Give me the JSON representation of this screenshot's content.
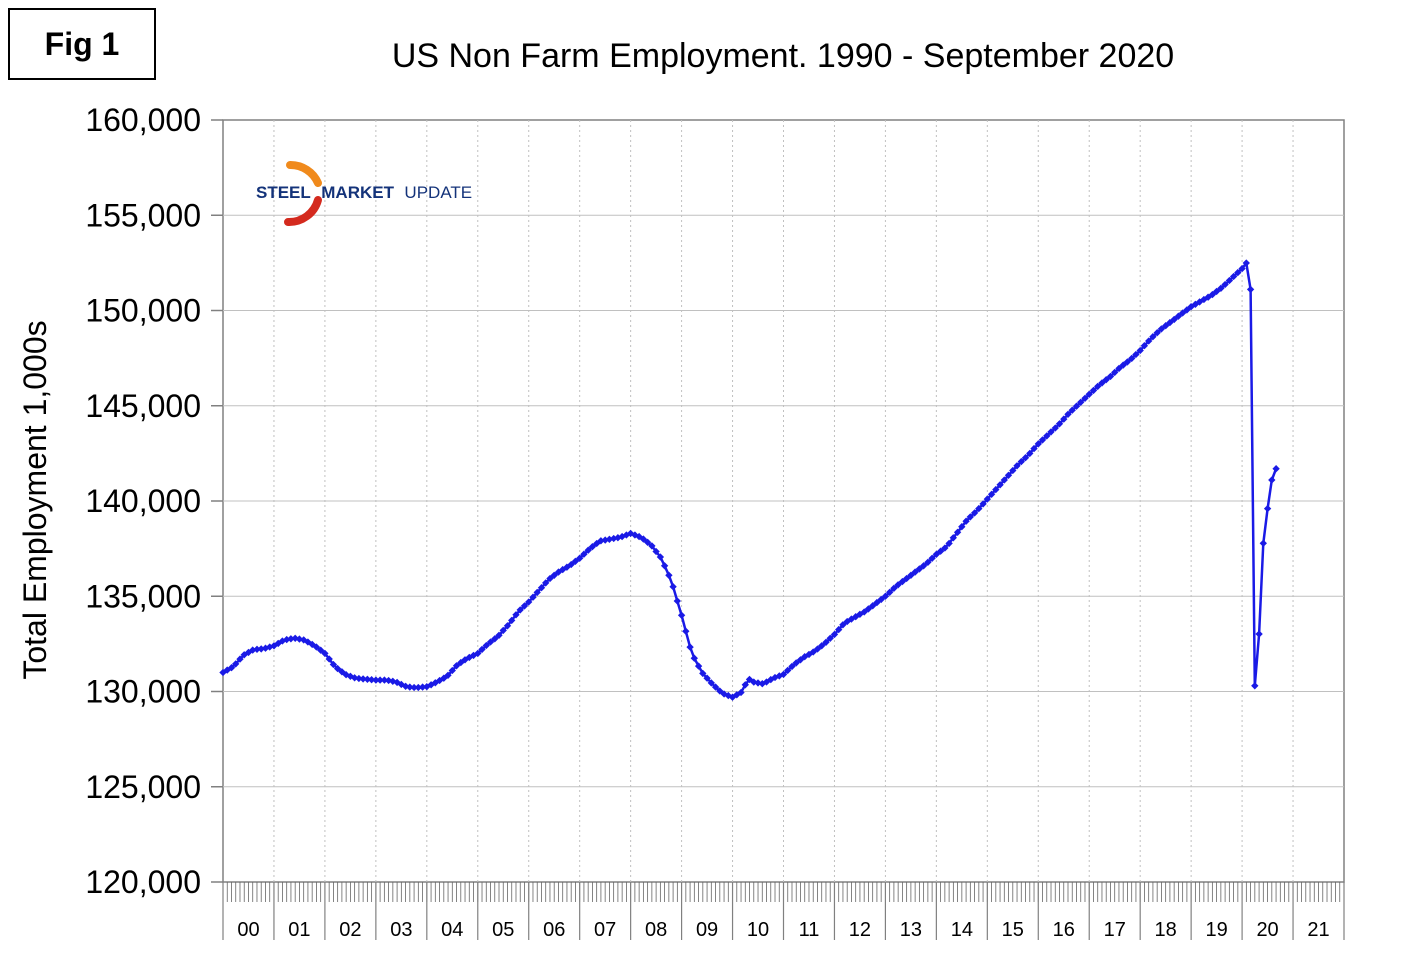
{
  "figure_label": "Fig 1",
  "logo": {
    "word1": "STEEL",
    "word2": "MARKET",
    "word3": "UPDATE"
  },
  "colors": {
    "series": "#1a1ae6",
    "grid": "#c0c0c0",
    "axis": "#808080",
    "logo_orange": "#f08a1c",
    "logo_red": "#d42a1e",
    "logo_blue": "#14337a"
  },
  "chart_data": {
    "type": "line",
    "title": "US Non Farm Employment. 1990 - September 2020",
    "ylabel": "Total Employment 1,000s",
    "xlabel": "",
    "ylim": [
      120000,
      160000
    ],
    "yticks": [
      120000,
      125000,
      130000,
      135000,
      140000,
      145000,
      150000,
      155000,
      160000
    ],
    "ytick_labels": [
      "120,000",
      "125,000",
      "130,000",
      "135,000",
      "140,000",
      "145,000",
      "150,000",
      "155,000",
      "160,000"
    ],
    "x_categories": [
      "00",
      "01",
      "02",
      "03",
      "04",
      "05",
      "06",
      "07",
      "08",
      "09",
      "10",
      "11",
      "12",
      "13",
      "14",
      "15",
      "16",
      "17",
      "18",
      "19",
      "20",
      "21"
    ],
    "xlim": [
      2000.0,
      2022.0
    ],
    "grid": true,
    "series": [
      {
        "anchors": [
          [
            2000.0,
            131000
          ],
          [
            2000.2,
            131300
          ],
          [
            2000.4,
            131900
          ],
          [
            2000.6,
            132200
          ],
          [
            2000.8,
            132250
          ],
          [
            2001.0,
            132400
          ],
          [
            2001.2,
            132700
          ],
          [
            2001.4,
            132800
          ],
          [
            2001.6,
            132700
          ],
          [
            2001.8,
            132400
          ],
          [
            2002.0,
            132000
          ],
          [
            2002.2,
            131300
          ],
          [
            2002.4,
            130900
          ],
          [
            2002.6,
            130700
          ],
          [
            2002.8,
            130650
          ],
          [
            2003.0,
            130600
          ],
          [
            2003.2,
            130600
          ],
          [
            2003.4,
            130500
          ],
          [
            2003.6,
            130250
          ],
          [
            2003.8,
            130200
          ],
          [
            2004.0,
            130250
          ],
          [
            2004.2,
            130500
          ],
          [
            2004.4,
            130800
          ],
          [
            2004.6,
            131400
          ],
          [
            2004.8,
            131750
          ],
          [
            2005.0,
            132000
          ],
          [
            2005.2,
            132500
          ],
          [
            2005.4,
            132900
          ],
          [
            2005.6,
            133500
          ],
          [
            2005.8,
            134200
          ],
          [
            2006.0,
            134700
          ],
          [
            2006.2,
            135300
          ],
          [
            2006.4,
            135900
          ],
          [
            2006.6,
            136300
          ],
          [
            2006.8,
            136600
          ],
          [
            2007.0,
            137000
          ],
          [
            2007.2,
            137500
          ],
          [
            2007.4,
            137900
          ],
          [
            2007.6,
            138000
          ],
          [
            2007.8,
            138100
          ],
          [
            2008.0,
            138300
          ],
          [
            2008.2,
            138100
          ],
          [
            2008.4,
            137700
          ],
          [
            2008.6,
            137000
          ],
          [
            2008.8,
            135800
          ],
          [
            2009.0,
            134000
          ],
          [
            2009.2,
            132000
          ],
          [
            2009.4,
            131000
          ],
          [
            2009.6,
            130400
          ],
          [
            2009.8,
            129900
          ],
          [
            2010.0,
            129700
          ],
          [
            2010.2,
            130000
          ],
          [
            2010.3,
            130700
          ],
          [
            2010.4,
            130500
          ],
          [
            2010.6,
            130400
          ],
          [
            2010.8,
            130700
          ],
          [
            2011.0,
            130900
          ],
          [
            2011.2,
            131400
          ],
          [
            2011.4,
            131800
          ],
          [
            2011.6,
            132100
          ],
          [
            2011.8,
            132500
          ],
          [
            2012.0,
            133000
          ],
          [
            2012.2,
            133600
          ],
          [
            2012.4,
            133900
          ],
          [
            2012.6,
            134200
          ],
          [
            2012.8,
            134600
          ],
          [
            2013.0,
            135000
          ],
          [
            2013.2,
            135500
          ],
          [
            2013.4,
            135900
          ],
          [
            2013.6,
            136300
          ],
          [
            2013.8,
            136700
          ],
          [
            2014.0,
            137200
          ],
          [
            2014.2,
            137600
          ],
          [
            2014.4,
            138300
          ],
          [
            2014.6,
            139000
          ],
          [
            2014.8,
            139500
          ],
          [
            2015.0,
            140100
          ],
          [
            2015.2,
            140700
          ],
          [
            2015.4,
            141300
          ],
          [
            2015.6,
            141900
          ],
          [
            2015.8,
            142400
          ],
          [
            2016.0,
            143000
          ],
          [
            2016.2,
            143500
          ],
          [
            2016.4,
            144000
          ],
          [
            2016.6,
            144600
          ],
          [
            2016.8,
            145100
          ],
          [
            2017.0,
            145600
          ],
          [
            2017.2,
            146100
          ],
          [
            2017.4,
            146500
          ],
          [
            2017.6,
            147000
          ],
          [
            2017.8,
            147400
          ],
          [
            2018.0,
            147900
          ],
          [
            2018.2,
            148500
          ],
          [
            2018.4,
            149000
          ],
          [
            2018.6,
            149400
          ],
          [
            2018.8,
            149800
          ],
          [
            2019.0,
            150200
          ],
          [
            2019.2,
            150500
          ],
          [
            2019.4,
            150800
          ],
          [
            2019.6,
            151200
          ],
          [
            2019.8,
            151700
          ],
          [
            2020.0,
            152200
          ],
          [
            2020.083,
            152500
          ],
          [
            2020.167,
            151100
          ],
          [
            2020.25,
            130300
          ],
          [
            2020.333,
            133000
          ],
          [
            2020.417,
            137800
          ],
          [
            2020.5,
            139600
          ],
          [
            2020.583,
            141100
          ],
          [
            2020.667,
            141700
          ]
        ]
      }
    ]
  }
}
